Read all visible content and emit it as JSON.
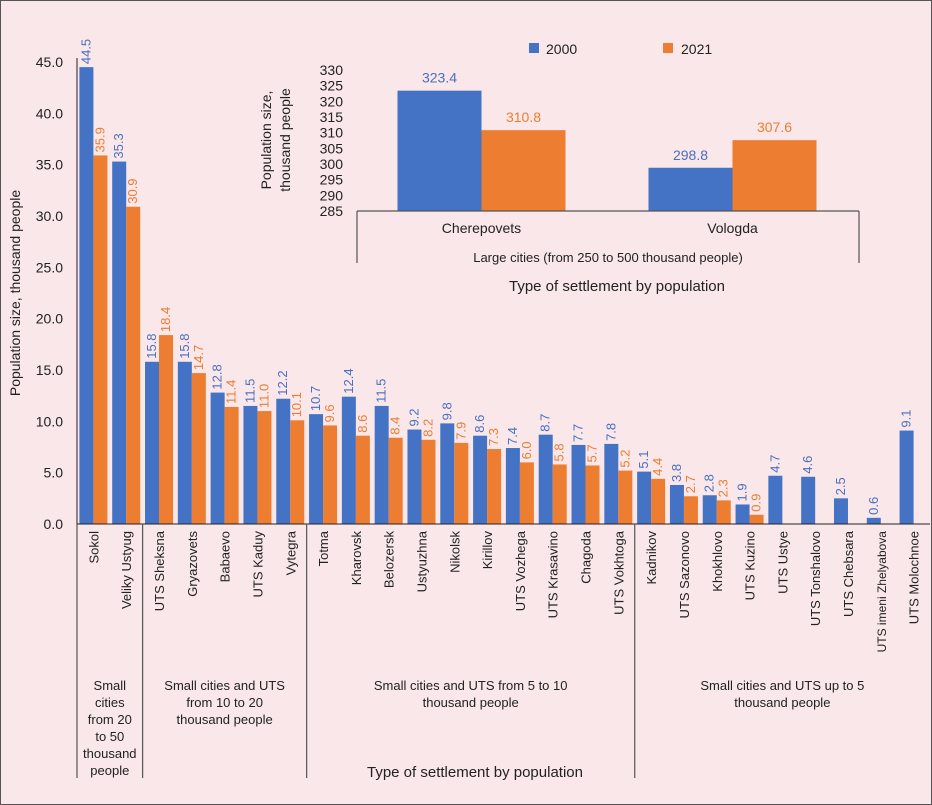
{
  "chart_data": [
    {
      "id": "main",
      "type": "bar",
      "title": "",
      "xlabel": "Type of settlement by population",
      "ylabel": "Population size, thousand people",
      "ylim": [
        0,
        45
      ],
      "yticks": [
        "0.0",
        "5.0",
        "10.0",
        "15.0",
        "20.0",
        "25.0",
        "30.0",
        "35.0",
        "40.0",
        "45.0"
      ],
      "grid": false,
      "categories": [
        "Sokol",
        "Veliky Ustyug",
        "UTS Sheksna",
        "Gryazovets",
        "Babaevo",
        "UTS Kaduy",
        "Vytegra",
        "Totma",
        "Kharovsk",
        "Belozersk",
        "Ustyuzhna",
        "Nikolsk",
        "Kirillov",
        "UTS Vozhega",
        "UTS Krasavino",
        "Chagoda",
        "UTS Vokhtoga",
        "Kadnikov",
        "UTS Sazonovo",
        "Khokhlovo",
        "UTS Kuzino",
        "UTS Ustye",
        "UTS Tonshalovo",
        "UTS Chebsara",
        "UTS imeni Zhelyabova",
        "UTS Molochnoe"
      ],
      "series": [
        {
          "name": "2000",
          "color": "#4472c4",
          "label_color": "#4a6fbf",
          "values": [
            44.5,
            35.3,
            15.8,
            15.8,
            12.8,
            11.5,
            12.2,
            10.7,
            12.4,
            11.5,
            9.2,
            9.8,
            8.6,
            7.4,
            8.7,
            7.7,
            7.8,
            5.1,
            3.8,
            2.8,
            1.9,
            4.7,
            4.6,
            2.5,
            0.6,
            9.1
          ],
          "labels": [
            "44.5",
            "35.3",
            "15.8",
            "15.8",
            "12.8",
            "11.5",
            "12.2",
            "10.7",
            "12.4",
            "11.5",
            "9.2",
            "9.8",
            "8.6",
            "7.4",
            "8.7",
            "7.7",
            "7.8",
            "5.1",
            "3.8",
            "2.8",
            "1.9",
            "4.7",
            "4.6",
            "2.5",
            "0.6",
            "9.1"
          ]
        },
        {
          "name": "2021",
          "color": "#ed7d31",
          "label_color": "#ed7d31",
          "values": [
            35.9,
            30.9,
            18.4,
            14.7,
            11.4,
            11.0,
            10.1,
            9.6,
            8.6,
            8.4,
            8.2,
            7.9,
            7.3,
            6.0,
            5.8,
            5.7,
            5.2,
            4.4,
            2.7,
            2.3,
            0.9,
            null,
            null,
            null,
            null,
            null
          ],
          "labels": [
            "35.9",
            "30.9",
            "18.4",
            "14.7",
            "11.4",
            "11.0",
            "10.1",
            "9.6",
            "8.6",
            "8.4",
            "8.2",
            "7.9",
            "7.3",
            "6.0",
            "5.8",
            "5.7",
            "5.2",
            "4.4",
            "2.7",
            "2.3",
            "0.9",
            null,
            null,
            null,
            null,
            null
          ]
        }
      ],
      "groups": [
        {
          "label_lines": [
            "Small",
            "cities",
            "from 20",
            "to 50",
            "thousand",
            "people"
          ],
          "start": 0,
          "end": 1
        },
        {
          "label_lines": [
            "Small cities and UTS",
            "from 10 to 20",
            "thousand people"
          ],
          "start": 2,
          "end": 6
        },
        {
          "label_lines": [
            "Small cities and UTS from 5 to 10",
            "thousand people"
          ],
          "start": 7,
          "end": 16
        },
        {
          "label_lines": [
            "Small cities and UTS up to 5",
            "thousand people"
          ],
          "start": 17,
          "end": 25
        }
      ]
    },
    {
      "id": "inset",
      "type": "bar",
      "title": "",
      "xlabel": "Type of settlement by population",
      "ylabel_lines": [
        "Population size,",
        "thousand people"
      ],
      "ylim": [
        285,
        330
      ],
      "yticks": [
        "285",
        "290",
        "295",
        "300",
        "305",
        "310",
        "315",
        "320",
        "325",
        "330"
      ],
      "grid": false,
      "legend": {
        "position": "top",
        "entries": [
          "2000",
          "2021"
        ]
      },
      "categories": [
        "Cherepovets",
        "Vologda"
      ],
      "series": [
        {
          "name": "2000",
          "color": "#4472c4",
          "label_color": "#4a6fbf",
          "values": [
            323.4,
            298.8
          ],
          "labels": [
            "323.4",
            "298.8"
          ]
        },
        {
          "name": "2021",
          "color": "#ed7d31",
          "label_color": "#ed7d31",
          "values": [
            310.8,
            307.6
          ],
          "labels": [
            "310.8",
            "307.6"
          ]
        }
      ],
      "groups": [
        {
          "label_lines": [
            "Large cities (from 250 to 500 thousand people)"
          ],
          "start": 0,
          "end": 1
        }
      ]
    }
  ]
}
